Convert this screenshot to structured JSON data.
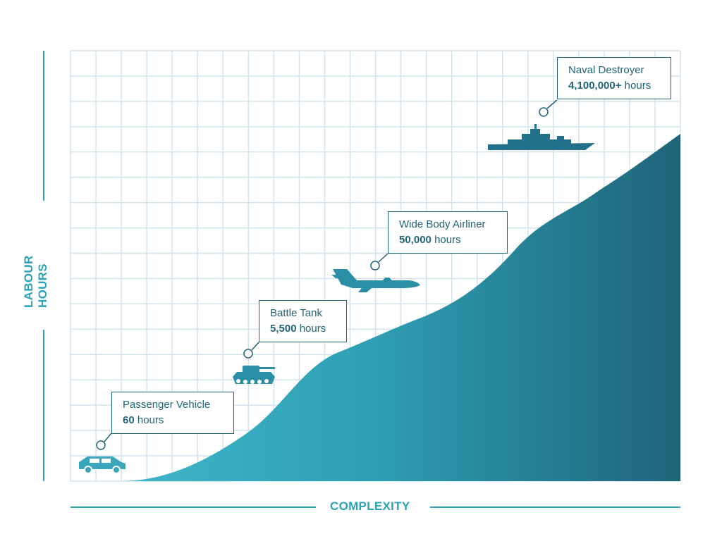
{
  "chart_data": {
    "type": "area",
    "xlabel": "COMPLEXITY",
    "ylabel": "LABOUR HOURS",
    "grid": true,
    "colors": {
      "area_start": "#3fb6c9",
      "area_end": "#1f6479",
      "grid": "#d2e4ea",
      "text": "#1f6479",
      "axis": "#2aa3b8"
    },
    "annotations": [
      {
        "label": "Passenger Vehicle",
        "value": "60",
        "unit": "hours",
        "icon": "car-icon"
      },
      {
        "label": "Battle Tank",
        "value": "5,500",
        "unit": "hours",
        "icon": "tank-icon"
      },
      {
        "label": "Wide Body Airliner",
        "value": "50,000",
        "unit": "hours",
        "icon": "airplane-icon"
      },
      {
        "label": "Naval Destroyer",
        "value": "4,100,000+",
        "unit": "hours",
        "icon": "ship-icon"
      }
    ]
  }
}
